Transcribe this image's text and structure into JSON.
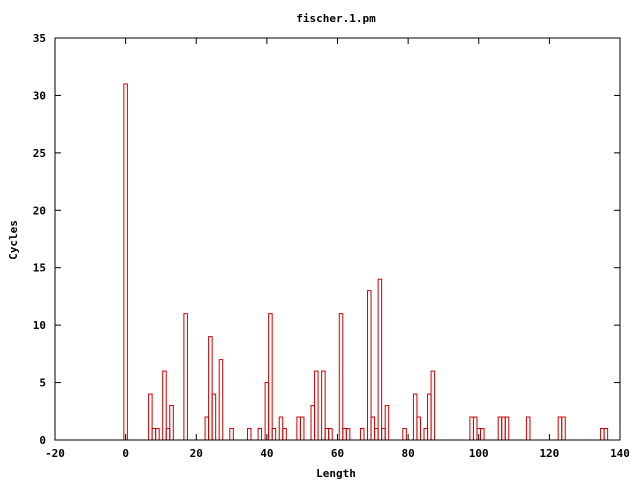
{
  "chart_data": {
    "type": "bar",
    "title": "fischer.1.pm",
    "xlabel": "Length",
    "ylabel": "Cycles",
    "xlim": [
      -20,
      140
    ],
    "ylim": [
      0,
      35
    ],
    "xticks": [
      -20,
      0,
      20,
      40,
      60,
      80,
      100,
      120,
      140
    ],
    "yticks": [
      0,
      5,
      10,
      15,
      20,
      25,
      30,
      35
    ],
    "grid": false,
    "bar_color": "#cc0000",
    "x": [
      0,
      7,
      8,
      9,
      11,
      12,
      13,
      17,
      23,
      24,
      25,
      27,
      30,
      35,
      38,
      40,
      41,
      42,
      44,
      45,
      49,
      50,
      53,
      54,
      56,
      57,
      58,
      61,
      62,
      63,
      67,
      69,
      70,
      71,
      72,
      73,
      74,
      79,
      82,
      83,
      85,
      86,
      87,
      98,
      99,
      100,
      101,
      106,
      107,
      108,
      114,
      123,
      124,
      135,
      136
    ],
    "values": [
      31,
      4,
      1,
      1,
      6,
      1,
      3,
      11,
      2,
      9,
      4,
      7,
      1,
      1,
      1,
      5,
      11,
      1,
      2,
      1,
      2,
      2,
      3,
      6,
      6,
      1,
      1,
      11,
      1,
      1,
      1,
      13,
      2,
      1,
      14,
      1,
      3,
      1,
      4,
      2,
      1,
      4,
      6,
      2,
      2,
      1,
      1,
      2,
      2,
      2,
      2,
      2,
      2,
      1,
      1
    ]
  }
}
